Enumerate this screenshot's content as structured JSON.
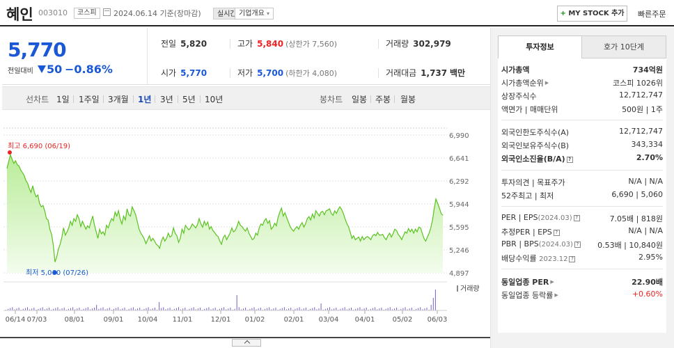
{
  "header": {
    "name": "혜인",
    "code": "003010",
    "market": "코스피",
    "date": "2024.06.14",
    "date_suffix": "기준(장마감)",
    "realtime": "실시간",
    "corp_info": "기업개요",
    "corp_info_arrow": "▾",
    "mystock_plus": "+",
    "mystock": "MY STOCK 추가",
    "quick_order": "빠른주문"
  },
  "price": {
    "current": "5,770",
    "vs_label": "전일대비",
    "change": "50",
    "change_pct": "−0.86%",
    "prev_close_label": "전일",
    "prev_close": "5,820",
    "high_label": "고가",
    "high": "5,840",
    "upper_limit_label": "(상한가",
    "upper_limit": "7,560)",
    "volume_label": "거래량",
    "volume": "302,979",
    "open_label": "시가",
    "open": "5,770",
    "low_label": "저가",
    "low": "5,700",
    "lower_limit_label": "(하한가",
    "lower_limit": "4,080)",
    "amount_label": "거래대금",
    "amount": "1,737",
    "amount_unit": "백만"
  },
  "chart_tabs": {
    "line_label": "선차트",
    "line": [
      "1일",
      "1주일",
      "3개월",
      "1년",
      "3년",
      "5년",
      "10년"
    ],
    "selected": "1년",
    "candle_label": "봉차트",
    "candle": [
      "일봉",
      "주봉",
      "월봉"
    ]
  },
  "chart_data": {
    "type": "area",
    "title": "",
    "y_ticks": [
      "6,990",
      "6,641",
      "6,292",
      "5,944",
      "5,595",
      "5,246",
      "4,897"
    ],
    "ylim": [
      4897,
      6990
    ],
    "x_ticks": [
      "06/14",
      "07/03",
      "08/01",
      "09/01",
      "10/04",
      "11/01",
      "12/01",
      "01/02",
      "02/01",
      "03/04",
      "04/01",
      "05/02",
      "06/03"
    ],
    "high_label": "최고 6,690 (06/19)",
    "low_label": "최저 5,060 (07/26)",
    "high": 6690,
    "low": 5060,
    "volume_legend": "거래량",
    "series": [
      {
        "values": [
          6480,
          6590,
          6690,
          6620,
          6560,
          6600,
          6540,
          6520,
          6460,
          6420,
          6380,
          6300,
          6260,
          6180,
          6120,
          6220,
          6120,
          6050,
          6080,
          5950,
          5900,
          5920,
          5840,
          5720,
          5700,
          5560,
          5480,
          5320,
          5060,
          5140,
          5260,
          5330,
          5440,
          5580,
          5470,
          5520,
          5580,
          5680,
          5620,
          5720,
          5680,
          5780,
          5720,
          5600,
          5680,
          5620,
          5560,
          5610,
          5580,
          5680,
          5760,
          5620,
          5520,
          5420,
          5560,
          5490,
          5520,
          5470,
          5620,
          5580,
          5660,
          5720,
          5690,
          5820,
          5760,
          5840,
          5710,
          5640,
          5760,
          5700,
          5870,
          5780,
          5760,
          5900,
          5840,
          5780,
          5670,
          5560,
          5500,
          5460,
          5410,
          5340,
          5400,
          5460,
          5380,
          5420,
          5380,
          5330,
          5310,
          5270,
          5380,
          5440,
          5380,
          5420,
          5500,
          5440,
          5460,
          5580,
          5500,
          5460,
          5360,
          5420,
          5560,
          5500,
          5620,
          5580,
          5550,
          5580,
          5640,
          5610,
          5580,
          5630,
          5720,
          5640,
          5590,
          5680,
          5620,
          5670,
          5560,
          5600,
          5540,
          5510,
          5470,
          5450,
          5380,
          5330,
          5430,
          5470,
          5400,
          5450,
          5500,
          5580,
          5520,
          5540,
          5600,
          5680,
          5620,
          5600,
          5560,
          5530,
          5580,
          5500,
          5450,
          5400,
          5420,
          5500,
          5470,
          5580,
          5640,
          5620,
          5690,
          5720,
          5650,
          5690,
          5560,
          5590,
          5650,
          5610,
          5740,
          5820,
          5880,
          5760,
          5810,
          5740,
          5670,
          5600,
          5560,
          5530,
          5570,
          5600,
          5560,
          5620,
          5660,
          5590,
          5640,
          5720,
          5750,
          5700,
          5790,
          5730,
          5840,
          5800,
          5760,
          5820,
          5830,
          5780,
          5840,
          5850,
          5870,
          5800,
          5770,
          5840,
          5800,
          5860,
          5900,
          5860,
          5800,
          5720,
          5650,
          5600,
          5520,
          5420,
          5460,
          5400,
          5420,
          5440,
          5380,
          5450,
          5400,
          5430,
          5450,
          5430,
          5400,
          5460,
          5480,
          5460,
          5510,
          5470,
          5470,
          5480,
          5430,
          5400,
          5460,
          5500,
          5440,
          5490,
          5560,
          5540,
          5480,
          5450,
          5400,
          5460,
          5520,
          5500,
          5570,
          5520,
          5560,
          5500,
          5560,
          5520,
          5590,
          5580,
          5500,
          5420,
          5380,
          5440,
          5500,
          5580,
          5700,
          5880,
          6020,
          5950,
          5880,
          5800,
          5770
        ]
      }
    ]
  },
  "right_panel": {
    "tab_active": "투자정보",
    "tab_other": "호가 10단계",
    "market_cap_label": "시가총액",
    "market_cap": "734억원",
    "cap_rank_label": "시가총액순위",
    "cap_rank": "코스피 1026위",
    "shares_label": "상장주식수",
    "shares": "12,712,747",
    "par_label": "액면가 | 매매단위",
    "par": "500원 | 1주",
    "foreign_limit_label": "외국인한도주식수(A)",
    "foreign_limit": "12,712,747",
    "foreign_hold_label": "외국인보유주식수(B)",
    "foreign_hold": "343,334",
    "foreign_ratio_label": "외국인소진율(B/A)",
    "foreign_ratio": "2.70%",
    "opinion_label": "투자의견 | 목표주가",
    "opinion": "N/A | N/A",
    "w52_label": "52주최고 | 최저",
    "w52": "6,690 | 5,060",
    "per_label": "PER | EPS",
    "per_date": "(2024.03)",
    "per": "7.05배 | 818원",
    "est_per_label": "추정PER | EPS",
    "est_per": "N/A | N/A",
    "pbr_label": "PBR | BPS",
    "pbr_date": "(2024.03)",
    "pbr": "0.53배 | 10,840원",
    "div_label": "배당수익률",
    "div_date": "2023.12",
    "div": "2.95%",
    "sector_per_label": "동일업종 PER",
    "sector_per": "22.90배",
    "sector_rate_label": "동일업종 등락률",
    "sector_rate": "+0.60%"
  }
}
